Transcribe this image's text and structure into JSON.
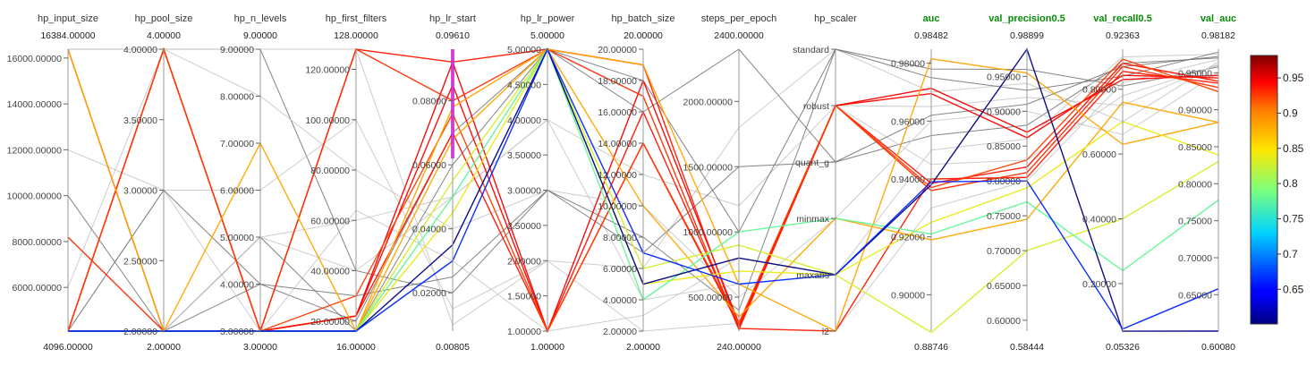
{
  "chart_data": {
    "type": "parallel_coordinates",
    "colormap": "jet",
    "color_by": "val_auc",
    "axes": [
      {
        "name": "hp_input_size",
        "metric": false,
        "top": "16384.00000",
        "bottom": "4096.00000",
        "min": 4096,
        "max": 16384,
        "ticks": [
          {
            "v": 6000,
            "t": "6000.00000"
          },
          {
            "v": 8000,
            "t": "8000.00000"
          },
          {
            "v": 10000,
            "t": "10000.00000"
          },
          {
            "v": 12000,
            "t": "12000.00000"
          },
          {
            "v": 14000,
            "t": "14000.00000"
          },
          {
            "v": 16000,
            "t": "16000.00000"
          }
        ]
      },
      {
        "name": "hp_pool_size",
        "metric": false,
        "top": "4.00000",
        "bottom": "2.00000",
        "min": 2,
        "max": 4,
        "ticks": [
          {
            "v": 2,
            "t": "2.00000"
          },
          {
            "v": 2.5,
            "t": "2.50000"
          },
          {
            "v": 3,
            "t": "3.00000"
          },
          {
            "v": 3.5,
            "t": "3.50000"
          },
          {
            "v": 4,
            "t": "4.00000"
          }
        ]
      },
      {
        "name": "hp_n_levels",
        "metric": false,
        "top": "9.00000",
        "bottom": "3.00000",
        "min": 3,
        "max": 9,
        "ticks": [
          {
            "v": 3,
            "t": "3.00000"
          },
          {
            "v": 4,
            "t": "4.00000"
          },
          {
            "v": 5,
            "t": "5.00000"
          },
          {
            "v": 6,
            "t": "6.00000"
          },
          {
            "v": 7,
            "t": "7.00000"
          },
          {
            "v": 8,
            "t": "8.00000"
          },
          {
            "v": 9,
            "t": "9.00000"
          }
        ]
      },
      {
        "name": "hp_first_filters",
        "metric": false,
        "top": "128.00000",
        "bottom": "16.00000",
        "min": 16,
        "max": 128,
        "ticks": [
          {
            "v": 20,
            "t": "20.00000"
          },
          {
            "v": 40,
            "t": "40.00000"
          },
          {
            "v": 60,
            "t": "60.00000"
          },
          {
            "v": 80,
            "t": "80.00000"
          },
          {
            "v": 100,
            "t": "100.00000"
          },
          {
            "v": 120,
            "t": "120.00000"
          }
        ]
      },
      {
        "name": "hp_lr_start",
        "metric": false,
        "top": "0.09610",
        "bottom": "0.00805",
        "min": 0.00805,
        "max": 0.0961,
        "ticks": [
          {
            "v": 0.02,
            "t": "0.02000"
          },
          {
            "v": 0.04,
            "t": "0.04000"
          },
          {
            "v": 0.06,
            "t": "0.06000"
          },
          {
            "v": 0.08,
            "t": "0.08000"
          }
        ]
      },
      {
        "name": "hp_lr_power",
        "metric": false,
        "top": "5.00000",
        "bottom": "1.00000",
        "min": 1,
        "max": 5,
        "ticks": [
          {
            "v": 1,
            "t": "1.00000"
          },
          {
            "v": 1.5,
            "t": "1.50000"
          },
          {
            "v": 2,
            "t": "2.00000"
          },
          {
            "v": 2.5,
            "t": "2.50000"
          },
          {
            "v": 3,
            "t": "3.00000"
          },
          {
            "v": 3.5,
            "t": "3.50000"
          },
          {
            "v": 4,
            "t": "4.00000"
          },
          {
            "v": 4.5,
            "t": "4.50000"
          },
          {
            "v": 5,
            "t": "5.00000"
          }
        ]
      },
      {
        "name": "hp_batch_size",
        "metric": false,
        "top": "20.00000",
        "bottom": "2.00000",
        "min": 2,
        "max": 20,
        "ticks": [
          {
            "v": 2,
            "t": "2.00000"
          },
          {
            "v": 4,
            "t": "4.00000"
          },
          {
            "v": 6,
            "t": "6.00000"
          },
          {
            "v": 8,
            "t": "8.00000"
          },
          {
            "v": 10,
            "t": "10.00000"
          },
          {
            "v": 12,
            "t": "12.00000"
          },
          {
            "v": 14,
            "t": "14.00000"
          },
          {
            "v": 16,
            "t": "16.00000"
          },
          {
            "v": 18,
            "t": "18.00000"
          },
          {
            "v": 20,
            "t": "20.00000"
          }
        ]
      },
      {
        "name": "steps_per_epoch",
        "metric": false,
        "top": "2400.00000",
        "bottom": "240.00000",
        "min": 240,
        "max": 2400,
        "ticks": [
          {
            "v": 500,
            "t": "500.00000"
          },
          {
            "v": 1000,
            "t": "1000.00000"
          },
          {
            "v": 1500,
            "t": "1500.00000"
          },
          {
            "v": 2000,
            "t": "2000.00000"
          }
        ]
      },
      {
        "name": "hp_scaler",
        "metric": false,
        "top": "",
        "bottom": "",
        "categorical": true,
        "categories": [
          "standard",
          "robust",
          "quant_g",
          "minmax",
          "maxabs",
          "l2"
        ]
      },
      {
        "name": "auc",
        "metric": true,
        "top": "0.98482",
        "bottom": "0.88746",
        "min": 0.88746,
        "max": 0.98482,
        "ticks": [
          {
            "v": 0.9,
            "t": "0.90000"
          },
          {
            "v": 0.92,
            "t": "0.92000"
          },
          {
            "v": 0.94,
            "t": "0.94000"
          },
          {
            "v": 0.96,
            "t": "0.96000"
          },
          {
            "v": 0.98,
            "t": "0.98000"
          }
        ]
      },
      {
        "name": "val_precision0.5",
        "metric": true,
        "top": "0.98899",
        "bottom": "0.58444",
        "min": 0.58444,
        "max": 0.98899,
        "ticks": [
          {
            "v": 0.6,
            "t": "0.60000"
          },
          {
            "v": 0.65,
            "t": "0.65000"
          },
          {
            "v": 0.7,
            "t": "0.70000"
          },
          {
            "v": 0.75,
            "t": "0.75000"
          },
          {
            "v": 0.8,
            "t": "0.80000"
          },
          {
            "v": 0.85,
            "t": "0.85000"
          },
          {
            "v": 0.9,
            "t": "0.90000"
          },
          {
            "v": 0.95,
            "t": "0.95000"
          }
        ]
      },
      {
        "name": "val_recall0.5",
        "metric": true,
        "top": "0.92363",
        "bottom": "0.05326",
        "min": 0.05326,
        "max": 0.92363,
        "ticks": [
          {
            "v": 0.2,
            "t": "0.20000"
          },
          {
            "v": 0.4,
            "t": "0.40000"
          },
          {
            "v": 0.6,
            "t": "0.60000"
          },
          {
            "v": 0.8,
            "t": "0.80000"
          }
        ]
      },
      {
        "name": "val_auc",
        "metric": true,
        "top": "0.98182",
        "bottom": "0.60080",
        "min": 0.6008,
        "max": 0.98182,
        "ticks": [
          {
            "v": 0.65,
            "t": "0.65000"
          },
          {
            "v": 0.7,
            "t": "0.70000"
          },
          {
            "v": 0.75,
            "t": "0.75000"
          },
          {
            "v": 0.8,
            "t": "0.80000"
          },
          {
            "v": 0.85,
            "t": "0.85000"
          },
          {
            "v": 0.9,
            "t": "0.90000"
          },
          {
            "v": 0.95,
            "t": "0.95000"
          }
        ]
      }
    ],
    "runs": [
      {
        "values": [
          4096,
          4,
          3,
          22,
          0.0921,
          1,
          18,
          300,
          "robust",
          0.9713,
          0.87,
          0.83,
          0.9465
        ],
        "highlight": true
      },
      {
        "values": [
          4096,
          4,
          3,
          22,
          0.085,
          1,
          14,
          280,
          "robust",
          0.9695,
          0.862,
          0.843,
          0.943
        ],
        "highlight": true
      },
      {
        "values": [
          16384,
          2,
          3,
          128,
          0.0921,
          5,
          19,
          260,
          "l2",
          0.94,
          0.805,
          0.855,
          0.936
        ],
        "highlight": true
      },
      {
        "values": [
          8192,
          2,
          3,
          128,
          0.08,
          5,
          17,
          250,
          "robust",
          0.936,
          0.812,
          0.87,
          0.93
        ],
        "highlight": true
      },
      {
        "values": [
          4096,
          2,
          3,
          22,
          0.07,
          1,
          16,
          270,
          "robust",
          0.9385,
          0.82,
          0.88,
          0.9385
        ],
        "highlight": true
      },
      {
        "values": [
          4096,
          4,
          3,
          30,
          0.076,
          1,
          14,
          300,
          "robust",
          0.937,
          0.83,
          0.893,
          0.9245
        ],
        "highlight": true
      },
      {
        "values": [
          4096,
          2,
          3,
          16,
          0.068,
          5,
          10,
          350,
          "minmax",
          0.919,
          0.745,
          0.76,
          0.883
        ],
        "highlight": true
      },
      {
        "values": [
          16384,
          2,
          7,
          16,
          0.078,
          5,
          19,
          600,
          "l2",
          0.9815,
          0.955,
          0.63,
          0.883
        ],
        "highlight": true
      },
      {
        "values": [
          4096,
          2,
          3,
          16,
          0.045,
          5,
          5,
          700,
          "maxabs",
          0.925,
          0.79,
          0.7,
          0.839
        ],
        "highlight": true
      },
      {
        "values": [
          4096,
          2,
          3,
          16,
          0.055,
          5,
          6,
          900,
          "maxabs",
          0.887,
          0.7,
          0.4,
          0.83
        ],
        "highlight": true
      },
      {
        "values": [
          4096,
          2,
          3,
          16,
          0.05,
          5,
          4,
          1000,
          "minmax",
          0.921,
          0.77,
          0.24,
          0.778
        ],
        "highlight": true
      },
      {
        "values": [
          4096,
          2,
          3,
          16,
          0.035,
          5,
          5,
          800,
          "maxabs",
          0.938,
          0.989,
          0.053,
          0.6008
        ],
        "highlight": true
      },
      {
        "values": [
          4096,
          2,
          3,
          16,
          0.03,
          5,
          7,
          600,
          "maxabs",
          0.939,
          0.8,
          0.06,
          0.658
        ],
        "highlight": true
      },
      {
        "values": [
          16384,
          4,
          9,
          40,
          0.02,
          3,
          8,
          400,
          "standard",
          0.978,
          0.96,
          0.81,
          0.958
        ]
      },
      {
        "values": [
          8192,
          2,
          5,
          60,
          0.05,
          4,
          12,
          1200,
          "robust",
          0.965,
          0.92,
          0.75,
          0.962
        ]
      },
      {
        "values": [
          12000,
          3,
          6,
          100,
          0.015,
          2,
          6,
          1800,
          "standard",
          0.97,
          0.94,
          0.7,
          0.965
        ]
      },
      {
        "values": [
          16384,
          2,
          4,
          20,
          0.07,
          5,
          16,
          2400,
          "quant_g",
          0.955,
          0.88,
          0.88,
          0.97
        ]
      },
      {
        "values": [
          6000,
          4,
          8,
          80,
          0.04,
          3,
          10,
          500,
          "minmax",
          0.96,
          0.9,
          0.66,
          0.95
        ]
      },
      {
        "values": [
          4096,
          3,
          3,
          64,
          0.03,
          1,
          3,
          800,
          "maxabs",
          0.95,
          0.86,
          0.9,
          0.975
        ]
      },
      {
        "values": [
          10000,
          2,
          5,
          16,
          0.06,
          5,
          18,
          1000,
          "standard",
          0.975,
          0.93,
          0.84,
          0.978
        ]
      },
      {
        "values": [
          16384,
          4,
          9,
          128,
          0.01,
          2,
          2,
          300,
          "robust",
          0.945,
          0.83,
          0.78,
          0.96
        ]
      },
      {
        "values": [
          8192,
          2,
          5,
          40,
          0.05,
          4,
          4,
          600,
          "l2",
          0.93,
          0.8,
          0.82,
          0.968
        ]
      },
      {
        "values": [
          4096,
          3,
          4,
          30,
          0.025,
          3,
          7,
          1500,
          "quant_g",
          0.962,
          0.91,
          0.87,
          0.972
        ]
      }
    ]
  }
}
